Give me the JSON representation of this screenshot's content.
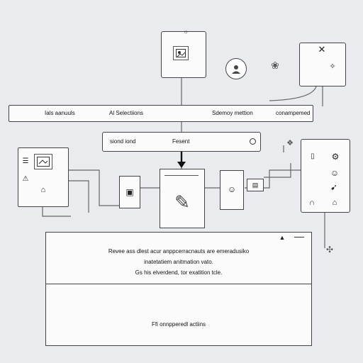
{
  "toolbar": {
    "items": [
      "Ials aanuuls",
      "Al Selectiions",
      "Sdemoy mettion",
      "conampemed"
    ]
  },
  "search": {
    "value": "siond iond",
    "right_text": "Fesent"
  },
  "message": {
    "lines": [
      "Revee ass dlest acur anppcerracnauts are emeradusiko",
      "inatetatiem anitmation vato.",
      "Gs his elverdend, tor exatition tcle."
    ]
  },
  "footer": {
    "text": "Ffi onnpperedl actiins"
  },
  "icons": {
    "top_window": "image-icon",
    "top_right_window": "close-icon",
    "round_badge": "avatar-icon",
    "down_arrow": "arrow-down-icon",
    "search_end": "search-icon",
    "message_corner": "warning-icon"
  }
}
